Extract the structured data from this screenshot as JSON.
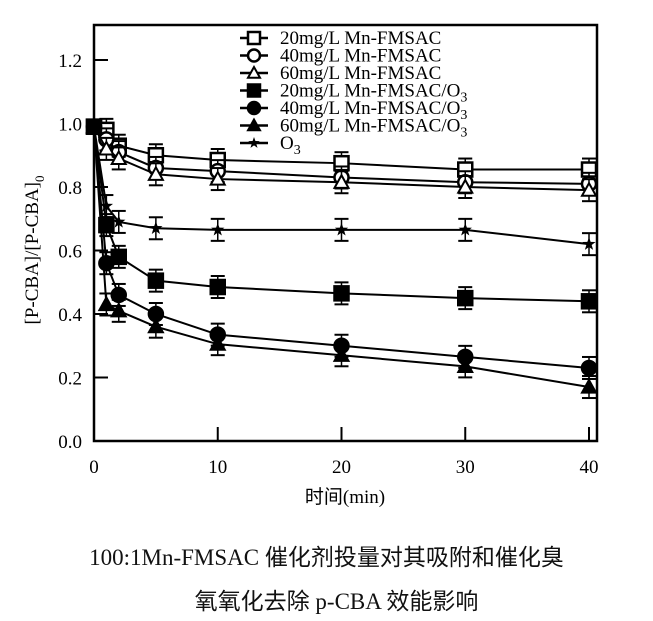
{
  "chart_data": {
    "type": "line",
    "xlabel": "时间(min)",
    "ylabel": "[P-CBA]/[P-CBA]",
    "ylabel_sub": "0",
    "xlim": [
      0,
      41
    ],
    "ylim": [
      0,
      1.3
    ],
    "xticks": [
      "0",
      "10",
      "20",
      "30",
      "40"
    ],
    "yticks": [
      "0.0",
      "0.2",
      "0.4",
      "0.6",
      "0.8",
      "1.0",
      "1.2"
    ],
    "legend_position": "top-center",
    "x": [
      0,
      1,
      2,
      5,
      10,
      20,
      30,
      40
    ],
    "series": [
      {
        "name": "20mg/L Mn-FMSAC",
        "sub": "",
        "marker": "square-open",
        "values": [
          0.99,
          0.98,
          0.93,
          0.9,
          0.885,
          0.875,
          0.855,
          0.855
        ]
      },
      {
        "name": "40mg/L Mn-FMSAC",
        "sub": "",
        "marker": "circle-open",
        "values": [
          0.99,
          0.95,
          0.91,
          0.86,
          0.85,
          0.83,
          0.815,
          0.81
        ]
      },
      {
        "name": "60mg/L Mn-FMSAC",
        "sub": "",
        "marker": "triangle-open",
        "values": [
          0.99,
          0.92,
          0.89,
          0.84,
          0.825,
          0.815,
          0.8,
          0.79
        ]
      },
      {
        "name": "20mg/L Mn-FMSAC/O",
        "sub": "3",
        "marker": "square-filled",
        "values": [
          0.99,
          0.68,
          0.58,
          0.505,
          0.485,
          0.465,
          0.45,
          0.44
        ]
      },
      {
        "name": "40mg/L Mn-FMSAC/O",
        "sub": "3",
        "marker": "circle-filled",
        "values": [
          0.99,
          0.56,
          0.46,
          0.4,
          0.335,
          0.3,
          0.265,
          0.23
        ]
      },
      {
        "name": "60mg/L Mn-FMSAC/O",
        "sub": "3",
        "marker": "triangle-filled",
        "values": [
          0.99,
          0.43,
          0.41,
          0.36,
          0.305,
          0.27,
          0.235,
          0.17
        ]
      },
      {
        "name": "O",
        "sub": "3",
        "marker": "star",
        "values": [
          0.99,
          0.74,
          0.69,
          0.67,
          0.665,
          0.665,
          0.665,
          0.62
        ]
      }
    ]
  },
  "caption": {
    "line1": "100:1Mn-FMSAC 催化剂投量对其吸附和催化臭",
    "line2": "氧氧化去除 p-CBA 效能影响"
  }
}
